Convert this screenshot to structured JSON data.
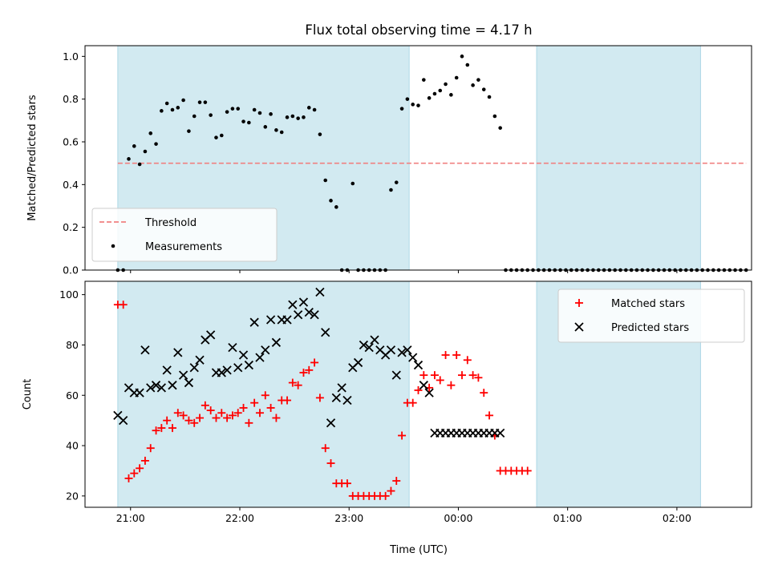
{
  "figure": {
    "title": "Flux total observing time = 4.17 h",
    "xlabel": "Time (UTC)"
  },
  "colors": {
    "band": "#add8e6",
    "threshold": "#f08080",
    "measurements": "#000000",
    "matched": "#ff0000",
    "predicted": "#000000"
  },
  "chart_data": [
    {
      "type": "scatter",
      "panel": "top",
      "ylabel": "Matched/Predicted stars",
      "xlim": [
        "20:35",
        "02:41"
      ],
      "ylim": [
        0,
        1.05
      ],
      "x_ticks": [
        "21:00",
        "22:00",
        "23:00",
        "00:00",
        "01:00",
        "02:00"
      ],
      "y_ticks": [
        "0.0",
        "0.2",
        "0.4",
        "0.6",
        "0.8",
        "1.0"
      ],
      "shaded_intervals": [
        [
          "20:53",
          "23:33"
        ],
        [
          "00:43",
          "02:13"
        ]
      ],
      "legend": {
        "location": "lower left",
        "entries": [
          "Threshold",
          "Measurements"
        ]
      },
      "threshold": {
        "name": "Threshold",
        "value": 0.5,
        "x_range": [
          "20:53",
          "02:38"
        ]
      },
      "series": [
        {
          "name": "Measurements",
          "marker": "dot",
          "x": [
            "20:53",
            "20:56",
            "20:59",
            "21:02",
            "21:05",
            "21:08",
            "21:11",
            "21:14",
            "21:17",
            "21:20",
            "21:23",
            "21:26",
            "21:29",
            "21:32",
            "21:35",
            "21:38",
            "21:41",
            "21:44",
            "21:47",
            "21:50",
            "21:53",
            "21:56",
            "21:59",
            "22:02",
            "22:05",
            "22:08",
            "22:11",
            "22:14",
            "22:17",
            "22:20",
            "22:23",
            "22:26",
            "22:29",
            "22:32",
            "22:35",
            "22:38",
            "22:41",
            "22:44",
            "22:47",
            "22:50",
            "22:53",
            "22:56",
            "22:59",
            "23:02",
            "23:05",
            "23:08",
            "23:11",
            "23:14",
            "23:17",
            "23:20",
            "23:23",
            "23:26",
            "23:29",
            "23:32",
            "23:35",
            "23:38",
            "23:41",
            "23:44",
            "23:47",
            "23:50",
            "23:53",
            "23:56",
            "23:59",
            "00:02",
            "00:05",
            "00:08",
            "00:11",
            "00:14",
            "00:17",
            "00:20",
            "00:23",
            "00:26",
            "00:29",
            "00:32",
            "00:35",
            "00:38",
            "00:41",
            "00:44",
            "00:47",
            "00:50",
            "00:53",
            "00:56",
            "00:59",
            "01:02",
            "01:05",
            "01:08",
            "01:11",
            "01:14",
            "01:17",
            "01:20",
            "01:23",
            "01:26",
            "01:29",
            "01:32",
            "01:35",
            "01:38",
            "01:41",
            "01:44",
            "01:47",
            "01:50",
            "01:53",
            "01:56",
            "01:59",
            "02:02",
            "02:05",
            "02:08",
            "02:11",
            "02:14",
            "02:17",
            "02:20",
            "02:23",
            "02:26",
            "02:29",
            "02:32",
            "02:35",
            "02:38"
          ],
          "y": [
            0.0,
            0.0,
            0.52,
            0.58,
            0.495,
            0.555,
            0.64,
            0.59,
            0.745,
            0.78,
            0.75,
            0.76,
            0.795,
            0.65,
            0.72,
            0.785,
            0.785,
            0.725,
            0.62,
            0.63,
            0.74,
            0.755,
            0.755,
            0.695,
            0.69,
            0.75,
            0.735,
            0.67,
            0.73,
            0.655,
            0.645,
            0.715,
            0.72,
            0.71,
            0.715,
            0.76,
            0.75,
            0.635,
            0.42,
            0.325,
            0.295,
            0.0,
            0.0,
            0.405,
            0.0,
            0.0,
            0.0,
            0.0,
            0.0,
            0.0,
            0.375,
            0.41,
            0.755,
            0.8,
            0.775,
            0.77,
            0.89,
            0.805,
            0.825,
            0.84,
            0.87,
            0.82,
            0.9,
            1.0,
            0.96,
            0.865,
            0.89,
            0.845,
            0.81,
            0.72,
            0.665,
            0.0,
            0.0,
            0.0,
            0.0,
            0.0,
            0.0,
            0.0,
            0.0,
            0.0,
            0.0,
            0.0,
            0.0,
            0.0,
            0.0,
            0.0,
            0.0,
            0.0,
            0.0,
            0.0,
            0.0,
            0.0,
            0.0,
            0.0,
            0.0,
            0.0,
            0.0,
            0.0,
            0.0,
            0.0,
            0.0,
            0.0,
            0.0,
            0.0,
            0.0,
            0.0,
            0.0,
            0.0,
            0.0,
            0.0,
            0.0,
            0.0,
            0.0,
            0.0,
            0.0,
            0.0
          ]
        }
      ]
    },
    {
      "type": "scatter",
      "panel": "bottom",
      "ylabel": "Count",
      "xlim": [
        "20:35",
        "02:41"
      ],
      "ylim": [
        15.5,
        105.3
      ],
      "x_ticks": [
        "21:00",
        "22:00",
        "23:00",
        "00:00",
        "01:00",
        "02:00"
      ],
      "y_ticks": [
        "20",
        "40",
        "60",
        "80",
        "100"
      ],
      "shaded_intervals": [
        [
          "20:53",
          "23:33"
        ],
        [
          "00:43",
          "02:13"
        ]
      ],
      "legend": {
        "location": "upper right",
        "entries": [
          "Matched stars",
          "Predicted stars"
        ]
      },
      "series": [
        {
          "name": "Matched stars",
          "marker": "plus",
          "x": [
            "20:53",
            "20:56",
            "20:59",
            "21:02",
            "21:05",
            "21:08",
            "21:11",
            "21:14",
            "21:17",
            "21:20",
            "21:23",
            "21:26",
            "21:29",
            "21:32",
            "21:35",
            "21:38",
            "21:41",
            "21:44",
            "21:47",
            "21:50",
            "21:53",
            "21:56",
            "21:59",
            "22:02",
            "22:05",
            "22:08",
            "22:11",
            "22:14",
            "22:17",
            "22:20",
            "22:23",
            "22:26",
            "22:29",
            "22:32",
            "22:35",
            "22:38",
            "22:41",
            "22:44",
            "22:47",
            "22:50",
            "22:53",
            "22:56",
            "22:59",
            "23:02",
            "23:05",
            "23:08",
            "23:11",
            "23:14",
            "23:17",
            "23:20",
            "23:23",
            "23:26",
            "23:29",
            "23:32",
            "23:35",
            "23:38",
            "23:41",
            "23:44",
            "23:47",
            "23:50",
            "23:53",
            "23:56",
            "23:59",
            "00:02",
            "00:05",
            "00:08",
            "00:11",
            "00:14",
            "00:17",
            "00:20",
            "00:23",
            "00:26",
            "00:29",
            "00:32",
            "00:35",
            "00:38"
          ],
          "y": [
            96,
            96,
            27,
            29,
            31,
            34,
            39,
            46,
            47,
            50,
            47,
            53,
            52,
            50,
            49,
            51,
            56,
            54,
            51,
            53,
            51,
            52,
            53,
            55,
            49,
            57,
            53,
            60,
            55,
            51,
            58,
            58,
            65,
            64,
            69,
            70,
            73,
            59,
            39,
            33,
            25,
            25,
            25,
            20,
            20,
            20,
            20,
            20,
            20,
            20,
            22,
            26,
            44,
            57,
            57,
            62,
            68,
            63,
            68,
            66,
            76,
            64,
            76,
            68,
            74,
            68,
            67,
            61,
            52,
            44,
            30,
            30,
            30,
            30,
            30,
            30
          ]
        },
        {
          "name": "Predicted stars",
          "marker": "x",
          "x": [
            "20:53",
            "20:56",
            "20:59",
            "21:02",
            "21:05",
            "21:08",
            "21:11",
            "21:14",
            "21:17",
            "21:20",
            "21:23",
            "21:26",
            "21:29",
            "21:32",
            "21:35",
            "21:38",
            "21:41",
            "21:44",
            "21:47",
            "21:50",
            "21:53",
            "21:56",
            "21:59",
            "22:02",
            "22:05",
            "22:08",
            "22:11",
            "22:14",
            "22:17",
            "22:20",
            "22:23",
            "22:26",
            "22:29",
            "22:32",
            "22:35",
            "22:38",
            "22:41",
            "22:44",
            "22:47",
            "22:50",
            "22:53",
            "22:56",
            "22:59",
            "23:02",
            "23:05",
            "23:08",
            "23:11",
            "23:14",
            "23:17",
            "23:20",
            "23:23",
            "23:26",
            "23:29",
            "23:32",
            "23:35",
            "23:38",
            "23:41",
            "23:44",
            "23:47",
            "23:50",
            "23:53",
            "23:56",
            "23:59",
            "00:02",
            "00:05",
            "00:08",
            "00:11",
            "00:14",
            "00:17",
            "00:20",
            "00:23"
          ],
          "y": [
            52,
            50,
            63,
            61,
            61,
            78,
            63,
            64,
            63,
            70,
            64,
            77,
            68,
            65,
            71,
            74,
            82,
            84,
            69,
            69,
            70,
            79,
            71,
            76,
            72,
            89,
            75,
            78,
            90,
            81,
            90,
            90,
            96,
            92,
            97,
            93,
            92,
            101,
            85,
            49,
            59,
            63,
            58,
            71,
            73,
            80,
            79,
            82,
            78,
            76,
            78,
            68,
            77,
            78,
            75,
            72,
            64,
            61,
            45,
            45,
            45,
            45,
            45,
            45,
            45,
            45,
            45,
            45,
            45,
            45,
            45
          ]
        }
      ]
    }
  ]
}
